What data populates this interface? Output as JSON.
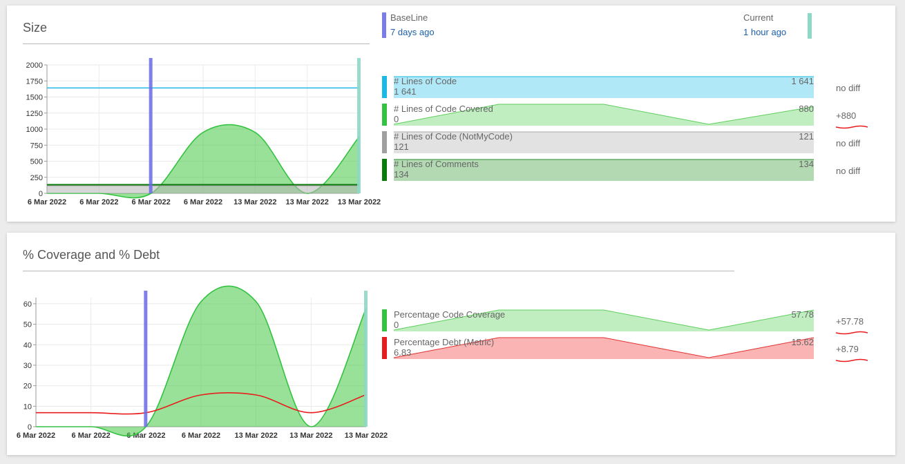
{
  "size_panel": {
    "title": "Size",
    "baseline": {
      "label": "BaseLine",
      "when": "7 days ago",
      "color": "#7b7bf0"
    },
    "current": {
      "label": "Current",
      "when": "1 hour ago",
      "color": "#8ed8c8"
    },
    "metrics": [
      {
        "name": "# Lines of Code",
        "baseline": "1 641",
        "current": "1 641",
        "diff": "no diff",
        "color": "#1cb8e6",
        "fill": "#b0e8f8",
        "stroke": "#1cb8e6",
        "trend": [
          1641,
          1641,
          1641,
          1641
        ]
      },
      {
        "name": "# Lines of Code Covered",
        "baseline": "0",
        "current": "880",
        "diff": "+880",
        "color": "#34c240",
        "fill": "#c0eec0",
        "stroke": "#5ccf5c",
        "trend": [
          0,
          1000,
          1000,
          0,
          880
        ]
      },
      {
        "name": "# Lines of Code (NotMyCode)",
        "baseline": "121",
        "current": "121",
        "diff": "no diff",
        "color": "#a0a0a0",
        "fill": "#e2e2e2",
        "stroke": "#a8a8a8",
        "trend": [
          121,
          121,
          121,
          121
        ]
      },
      {
        "name": "# Lines of Comments",
        "baseline": "134",
        "current": "134",
        "diff": "no diff",
        "color": "#0a7a0a",
        "fill": "#b2d9b2",
        "stroke": "#2e8b2e",
        "trend": [
          134,
          134,
          134,
          134
        ]
      }
    ],
    "chart_data": {
      "type": "area",
      "y_ticks": [
        "2000",
        "1750",
        "1500",
        "1250",
        "1000",
        "750",
        "500",
        "250",
        "0"
      ],
      "ylim": [
        0,
        2000
      ],
      "x_ticks": [
        "6 Mar 2022",
        "6 Mar 2022",
        "6 Mar 2022",
        "6 Mar 2022",
        "13 Mar 2022",
        "13 Mar 2022",
        "13 Mar 2022"
      ],
      "series": [
        {
          "name": "# Lines of Code",
          "color": "#1cb8e6",
          "values": [
            1641,
            1641,
            1641,
            1641,
            1641,
            1641,
            1641
          ]
        },
        {
          "name": "# Lines of Code Covered",
          "color": "#34c240",
          "values": [
            0,
            0,
            0,
            950,
            950,
            0,
            880
          ]
        },
        {
          "name": "# Lines of Code (NotMyCode)",
          "color": "#a0a0a0",
          "values": [
            121,
            121,
            121,
            121,
            121,
            121,
            121
          ]
        },
        {
          "name": "# Lines of Comments",
          "color": "#0a7a0a",
          "values": [
            134,
            134,
            134,
            134,
            134,
            134,
            134
          ]
        }
      ]
    }
  },
  "coverage_panel": {
    "title": "% Coverage and % Debt",
    "metrics": [
      {
        "name": "Percentage Code Coverage",
        "baseline": "0",
        "current": "57.78",
        "diff": "+57.78",
        "color": "#34c240",
        "fill": "#c0eec0",
        "stroke": "#5ccf5c",
        "trend": [
          0,
          100,
          100,
          0,
          100
        ]
      },
      {
        "name": "Percentage Debt (Metric)",
        "baseline": "6.83",
        "current": "15.62",
        "diff": "+8.79",
        "color": "#e81c1c",
        "fill": "#fbb4b4",
        "stroke": "#e03030",
        "trend": [
          0,
          100,
          100,
          0,
          100
        ]
      }
    ],
    "chart_data": {
      "type": "area",
      "y_ticks": [
        "60",
        "50",
        "40",
        "30",
        "20",
        "10",
        "0"
      ],
      "ylim": [
        0,
        63
      ],
      "x_ticks": [
        "6 Mar 2022",
        "6 Mar 2022",
        "6 Mar 2022",
        "6 Mar 2022",
        "13 Mar 2022",
        "13 Mar 2022",
        "13 Mar 2022"
      ],
      "series": [
        {
          "name": "Percentage Code Coverage",
          "color": "#34c240",
          "values": [
            0,
            0,
            0,
            61,
            61,
            0,
            57.78
          ]
        },
        {
          "name": "Percentage Debt (Metric)",
          "color": "#e81c1c",
          "values": [
            6.83,
            6.83,
            6.83,
            15.5,
            15.5,
            6.83,
            15.62
          ]
        }
      ]
    }
  }
}
